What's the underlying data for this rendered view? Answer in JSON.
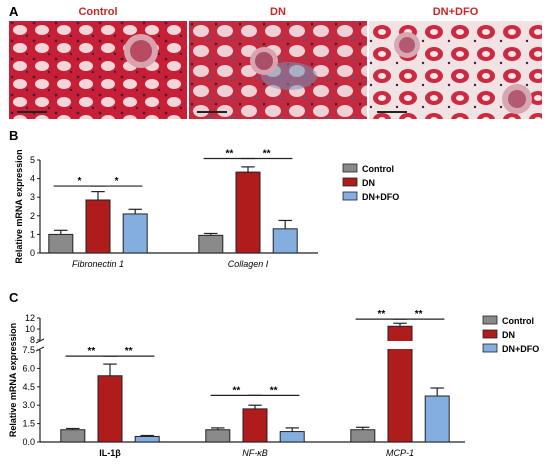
{
  "panel_a": {
    "letter": "A",
    "images": [
      {
        "title": "Control"
      },
      {
        "title": "DN"
      },
      {
        "title": "DN+DFO"
      }
    ]
  },
  "panel_b": {
    "letter": "B"
  },
  "panel_c": {
    "letter": "C"
  },
  "colors": {
    "control": "#8a8a8a",
    "dn": "#b01c1c",
    "dfo": "#84aee0"
  },
  "chart_data": [
    {
      "type": "bar",
      "ylabel": "Relative mRNA expression",
      "yticks": [
        "0",
        "1",
        "2",
        "3",
        "4",
        "5"
      ],
      "ylim": [
        0,
        5
      ],
      "categories": [
        "Fibronectin 1",
        "Collagen I"
      ],
      "series": [
        {
          "name": "Control",
          "values": [
            1.0,
            0.95
          ],
          "errors": [
            0.22,
            0.1
          ]
        },
        {
          "name": "DN",
          "values": [
            2.85,
            4.35
          ],
          "errors": [
            0.45,
            0.28
          ]
        },
        {
          "name": "DN+DFO",
          "values": [
            2.1,
            1.3
          ],
          "errors": [
            0.25,
            0.45
          ]
        }
      ],
      "significance": [
        {
          "category": 0,
          "from": "Control",
          "to": "DN",
          "label": "*"
        },
        {
          "category": 0,
          "from": "DN",
          "to": "DN+DFO",
          "label": "*"
        },
        {
          "category": 1,
          "from": "Control",
          "to": "DN",
          "label": "**"
        },
        {
          "category": 1,
          "from": "DN",
          "to": "DN+DFO",
          "label": "**"
        }
      ],
      "legend": [
        "Control",
        "DN",
        "DN+DFO"
      ],
      "legend_position": "right"
    },
    {
      "type": "bar",
      "ylabel": "Relative mRNA expression",
      "yticks_lower": [
        "0.0",
        "1.5",
        "3.0",
        "4.5",
        "6.0",
        "7.5"
      ],
      "yticks_upper": [
        "8",
        "10",
        "12"
      ],
      "ylim_lower": [
        0,
        7.5
      ],
      "ylim_upper": [
        8,
        12
      ],
      "axis_break": true,
      "categories": [
        "IL-1β",
        "NF-κB",
        "MCP-1"
      ],
      "series": [
        {
          "name": "Control",
          "values": [
            1.0,
            1.0,
            1.0
          ],
          "errors": [
            0.1,
            0.15,
            0.2
          ]
        },
        {
          "name": "DN",
          "values": [
            5.4,
            2.7,
            10.5
          ],
          "errors": [
            0.95,
            0.3,
            0.55
          ]
        },
        {
          "name": "DN+DFO",
          "values": [
            0.45,
            0.85,
            3.75
          ],
          "errors": [
            0.08,
            0.3,
            0.65
          ]
        }
      ],
      "significance": [
        {
          "category": 0,
          "from": "Control",
          "to": "DN",
          "label": "**"
        },
        {
          "category": 0,
          "from": "DN",
          "to": "DN+DFO",
          "label": "**"
        },
        {
          "category": 1,
          "from": "Control",
          "to": "DN",
          "label": "**"
        },
        {
          "category": 1,
          "from": "DN",
          "to": "DN+DFO",
          "label": "**"
        },
        {
          "category": 2,
          "from": "Control",
          "to": "DN",
          "label": "**"
        },
        {
          "category": 2,
          "from": "DN",
          "to": "DN+DFO",
          "label": "**"
        }
      ],
      "legend": [
        "Control",
        "DN",
        "DN+DFO"
      ],
      "legend_position": "right"
    }
  ]
}
